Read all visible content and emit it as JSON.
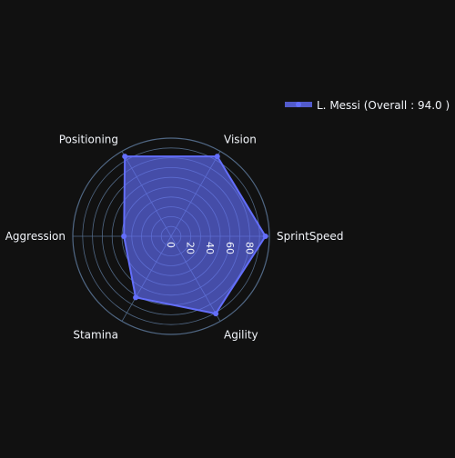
{
  "chart_data": {
    "type": "radar",
    "title": "",
    "categories": [
      "SprintSpeed",
      "Agility",
      "Stamina",
      "Aggression",
      "Positioning",
      "Vision"
    ],
    "series": [
      {
        "name": "L. Messi  (Overall : 94.0 )",
        "values": [
          96,
          91,
          72,
          48,
          94,
          94
        ]
      }
    ],
    "radial_range": [
      0,
      100
    ],
    "radial_ticks": [
      0,
      20,
      40,
      60,
      80
    ],
    "radial_tick_labels": [
      "0",
      "20",
      "40",
      "60",
      "80"
    ],
    "grid": true,
    "legend_position": "top-right",
    "colors": {
      "background": "#111111",
      "series": "#636efa",
      "fill": "rgba(99,110,250,0.65)",
      "grid": "#506784",
      "text": "#f2f5fa"
    }
  }
}
